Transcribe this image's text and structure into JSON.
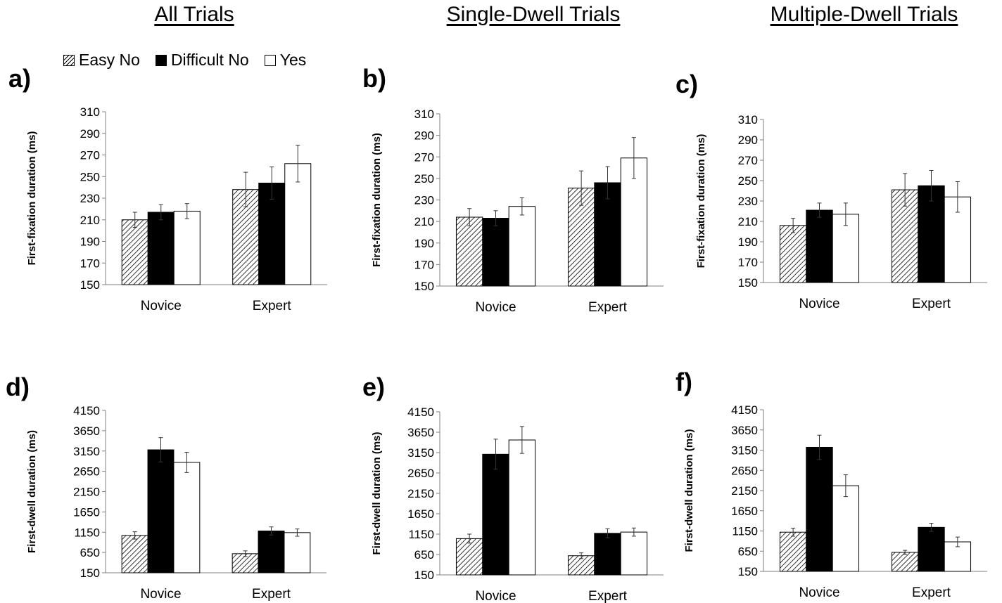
{
  "column_titles": [
    "All Trials",
    "Single-Dwell Trials",
    "Multiple-Dwell Trials"
  ],
  "legend": [
    {
      "label": "Easy No",
      "style": "hatch"
    },
    {
      "label": "Difficult No",
      "style": "solid"
    },
    {
      "label": "Yes",
      "style": "open"
    }
  ],
  "colors": {
    "solid": "#000000",
    "open": "#ffffff",
    "axis": "#7f7f7f",
    "error": "#333333"
  },
  "chart_data": [
    {
      "panel": "a)",
      "type": "bar",
      "ylabel": "First-fixation duration (ms)",
      "categories": [
        "Novice",
        "Expert"
      ],
      "ylim": [
        150,
        310
      ],
      "yticks": [
        "150",
        "170",
        "190",
        "210",
        "230",
        "250",
        "270",
        "290",
        "310"
      ],
      "series": [
        {
          "name": "Easy No",
          "values": [
            210,
            238
          ],
          "errors": [
            7,
            16
          ]
        },
        {
          "name": "Difficult No",
          "values": [
            217,
            244
          ],
          "errors": [
            7,
            15
          ]
        },
        {
          "name": "Yes",
          "values": [
            218,
            262
          ],
          "errors": [
            7,
            17
          ]
        }
      ]
    },
    {
      "panel": "b)",
      "type": "bar",
      "ylabel": "First-fixation duration (ms)",
      "categories": [
        "Novice",
        "Expert"
      ],
      "ylim": [
        150,
        310
      ],
      "yticks": [
        "150",
        "170",
        "190",
        "210",
        "230",
        "250",
        "270",
        "290",
        "310"
      ],
      "series": [
        {
          "name": "Easy No",
          "values": [
            214,
            241
          ],
          "errors": [
            8,
            16
          ]
        },
        {
          "name": "Difficult No",
          "values": [
            213,
            246
          ],
          "errors": [
            7,
            15
          ]
        },
        {
          "name": "Yes",
          "values": [
            224,
            269
          ],
          "errors": [
            8,
            19
          ]
        }
      ]
    },
    {
      "panel": "c)",
      "type": "bar",
      "ylabel": "First-fixation duration (ms)",
      "categories": [
        "Novice",
        "Expert"
      ],
      "ylim": [
        150,
        310
      ],
      "yticks": [
        "150",
        "170",
        "190",
        "210",
        "230",
        "250",
        "270",
        "290",
        "310"
      ],
      "series": [
        {
          "name": "Easy No",
          "values": [
            206,
            241
          ],
          "errors": [
            7,
            16
          ]
        },
        {
          "name": "Difficult No",
          "values": [
            221,
            245
          ],
          "errors": [
            7,
            15
          ]
        },
        {
          "name": "Yes",
          "values": [
            217,
            234
          ],
          "errors": [
            11,
            15
          ]
        }
      ]
    },
    {
      "panel": "d)",
      "type": "bar",
      "ylabel": "First-dwell duration (ms)",
      "categories": [
        "Novice",
        "Expert"
      ],
      "ylim": [
        150,
        4150
      ],
      "yticks": [
        "150",
        "650",
        "1150",
        "1650",
        "2150",
        "2650",
        "3150",
        "3650",
        "4150"
      ],
      "series": [
        {
          "name": "Easy No",
          "values": [
            1070,
            620
          ],
          "errors": [
            90,
            70
          ]
        },
        {
          "name": "Difficult No",
          "values": [
            3180,
            1180
          ],
          "errors": [
            300,
            100
          ]
        },
        {
          "name": "Yes",
          "values": [
            2870,
            1140
          ],
          "errors": [
            250,
            90
          ]
        }
      ]
    },
    {
      "panel": "e)",
      "type": "bar",
      "ylabel": "First-dwell duration (ms)",
      "categories": [
        "Novice",
        "Expert"
      ],
      "ylim": [
        150,
        4150
      ],
      "yticks": [
        "150",
        "650",
        "1150",
        "1650",
        "2150",
        "2650",
        "3150",
        "3650",
        "4150"
      ],
      "series": [
        {
          "name": "Easy No",
          "values": [
            1040,
            620
          ],
          "errors": [
            110,
            70
          ]
        },
        {
          "name": "Difficult No",
          "values": [
            3110,
            1170
          ],
          "errors": [
            370,
            110
          ]
        },
        {
          "name": "Yes",
          "values": [
            3460,
            1200
          ],
          "errors": [
            330,
            100
          ]
        }
      ]
    },
    {
      "panel": "f)",
      "type": "bar",
      "ylabel": "First-dwell duration (ms)",
      "categories": [
        "Novice",
        "Expert"
      ],
      "ylim": [
        150,
        4150
      ],
      "yticks": [
        "150",
        "650",
        "1150",
        "1650",
        "2150",
        "2650",
        "3150",
        "3650",
        "4150"
      ],
      "series": [
        {
          "name": "Easy No",
          "values": [
            1120,
            620
          ],
          "errors": [
            100,
            50
          ]
        },
        {
          "name": "Difficult No",
          "values": [
            3220,
            1240
          ],
          "errors": [
            300,
            100
          ]
        },
        {
          "name": "Yes",
          "values": [
            2270,
            880
          ],
          "errors": [
            270,
            120
          ]
        }
      ]
    }
  ]
}
